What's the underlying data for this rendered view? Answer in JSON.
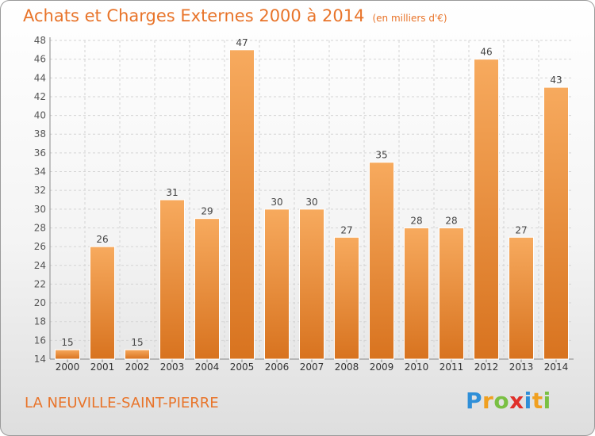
{
  "title": "Achats et Charges Externes 2000 à 2014",
  "unit": "(en milliers d'€)",
  "commune": "LA NEUVILLE-SAINT-PIERRE",
  "brand": {
    "letters": [
      "P",
      "r",
      "o",
      "x",
      "i",
      "t",
      "i"
    ],
    "colors": [
      "#2f8fd8",
      "#f0a020",
      "#7ac043",
      "#e0302a",
      "#2f8fd8",
      "#f0a020",
      "#7ac043"
    ]
  },
  "colors": {
    "accent": "#e8742a",
    "bar_top": "#f7aa5e",
    "bar_bottom": "#d8731f"
  },
  "chart_data": {
    "type": "bar",
    "title": "Achats et Charges Externes 2000 à 2014",
    "categories": [
      "2000",
      "2001",
      "2002",
      "2003",
      "2004",
      "2005",
      "2006",
      "2007",
      "2008",
      "2009",
      "2010",
      "2011",
      "2012",
      "2013",
      "2014"
    ],
    "values": [
      15,
      26,
      15,
      31,
      29,
      47,
      30,
      30,
      27,
      35,
      28,
      28,
      46,
      27,
      43
    ],
    "ylim": [
      14,
      48
    ],
    "yticks": [
      14,
      16,
      18,
      20,
      22,
      24,
      26,
      28,
      30,
      32,
      34,
      36,
      38,
      40,
      42,
      44,
      46,
      48
    ],
    "grid": true,
    "data_labels": true
  }
}
